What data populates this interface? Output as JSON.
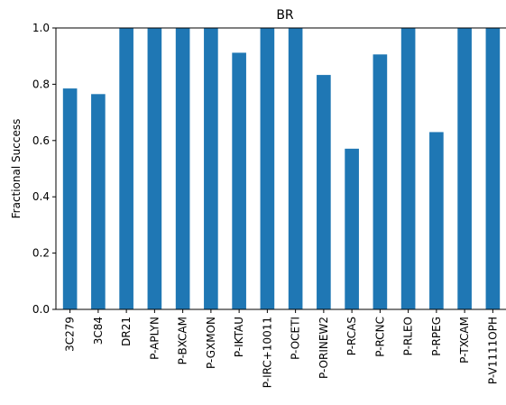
{
  "chart_data": {
    "type": "bar",
    "title": "BR",
    "xlabel": "",
    "ylabel": "Fractional Success",
    "ylim": [
      0,
      1.0
    ],
    "yticks": [
      0.0,
      0.2,
      0.4,
      0.6,
      0.8,
      1.0
    ],
    "ytick_labels": [
      "0.0",
      "0.2",
      "0.4",
      "0.6",
      "0.8",
      "1.0"
    ],
    "grid": false,
    "bar_color": "#1f77b4",
    "categories": [
      "3C279",
      "3C84",
      "DR21",
      "P-APLYN",
      "P-BXCAM",
      "P-GXMON",
      "P-IKTAU",
      "P-IRC+10011",
      "P-OCETI",
      "P-ORINEW2",
      "P-RCAS",
      "P-RCNC",
      "P-RLEO",
      "P-RPEG",
      "P-TXCAM",
      "P-V1111OPH"
    ],
    "values": [
      0.785,
      0.765,
      1.0,
      1.0,
      1.0,
      1.0,
      0.912,
      1.0,
      1.0,
      0.833,
      0.571,
      0.906,
      1.0,
      0.63,
      1.0,
      1.0
    ]
  }
}
